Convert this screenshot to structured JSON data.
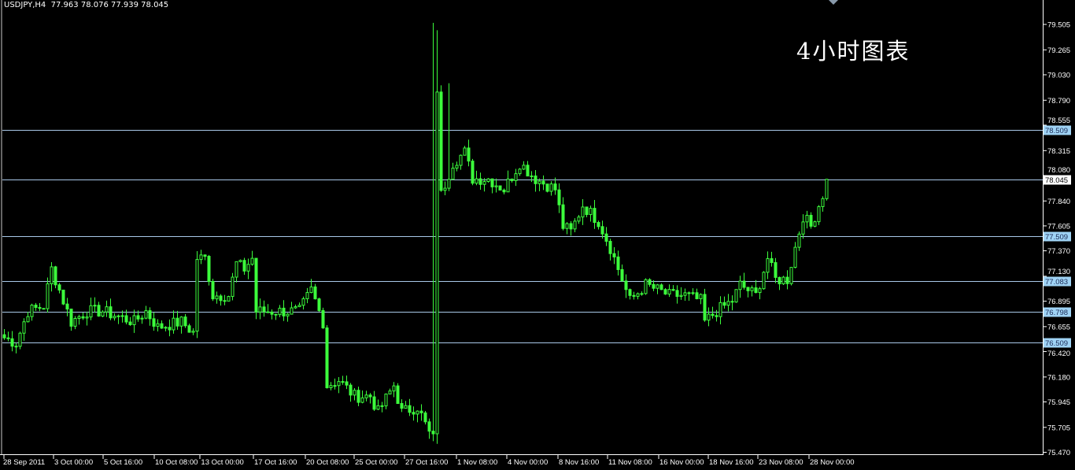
{
  "header": {
    "symbol": "USDJPY,H4",
    "ohlc": "77.963 78.076 77.939 78.045"
  },
  "overlay_text": "4小时图表",
  "colors": {
    "background": "#000000",
    "candle": "#3cff3c",
    "axis": "#ffffff",
    "level_line": "#a9c8e8",
    "level_label_bg": "#9fd3f5",
    "current_label_bg": "#ffffff"
  },
  "chart_data": {
    "type": "candlestick",
    "symbol": "USDJPY",
    "timeframe": "H4",
    "ylim": [
      75.47,
      79.505
    ],
    "grid": false,
    "y_ticks": [
      "79.505",
      "79.265",
      "79.030",
      "78.790",
      "78.555",
      "78.315",
      "78.080",
      "77.840",
      "77.605",
      "77.370",
      "77.130",
      "76.895",
      "76.655",
      "76.420",
      "76.180",
      "75.945",
      "75.705",
      "75.470"
    ],
    "x_ticks": [
      "28 Sep 2011",
      "3 Oct 00:00",
      "5 Oct 16:00",
      "10 Oct 08:00",
      "13 Oct 00:00",
      "17 Oct 16:00",
      "20 Oct 08:00",
      "25 Oct 00:00",
      "27 Oct 16:00",
      "1 Nov 08:00",
      "4 Nov 00:00",
      "8 Nov 16:00",
      "11 Nov 08:00",
      "16 Nov 00:00",
      "18 Nov 16:00",
      "23 Nov 08:00",
      "28 Nov 00:00"
    ],
    "close_path": [
      [
        0,
        76.55
      ],
      [
        3,
        76.5
      ],
      [
        6,
        76.8
      ],
      [
        10,
        76.85
      ],
      [
        12,
        77.2
      ],
      [
        14,
        77.0
      ],
      [
        17,
        76.7
      ],
      [
        21,
        76.8
      ],
      [
        25,
        76.8
      ],
      [
        29,
        76.75
      ],
      [
        33,
        76.7
      ],
      [
        36,
        76.8
      ],
      [
        39,
        76.65
      ],
      [
        45,
        76.7
      ],
      [
        48,
        76.6
      ],
      [
        49,
        77.3
      ],
      [
        51,
        77.3
      ],
      [
        53,
        76.95
      ],
      [
        57,
        76.95
      ],
      [
        59,
        77.25
      ],
      [
        61,
        77.2
      ],
      [
        63,
        77.3
      ],
      [
        64,
        76.8
      ],
      [
        69,
        76.8
      ],
      [
        75,
        76.8
      ],
      [
        78,
        77.0
      ],
      [
        81,
        76.7
      ],
      [
        82,
        76.1
      ],
      [
        85,
        76.15
      ],
      [
        89,
        76.0
      ],
      [
        93,
        76.0
      ],
      [
        95,
        75.85
      ],
      [
        99,
        76.1
      ],
      [
        101,
        75.85
      ],
      [
        105,
        75.9
      ],
      [
        108,
        75.65
      ],
      [
        109,
        75.6
      ],
      [
        110,
        78.9
      ],
      [
        111,
        77.9
      ],
      [
        112,
        78.0
      ],
      [
        114,
        78.2
      ],
      [
        117,
        78.3
      ],
      [
        119,
        78.05
      ],
      [
        123,
        78.05
      ],
      [
        127,
        77.95
      ],
      [
        131,
        78.2
      ],
      [
        135,
        78.05
      ],
      [
        140,
        77.95
      ],
      [
        142,
        77.6
      ],
      [
        144,
        77.55
      ],
      [
        147,
        77.8
      ],
      [
        151,
        77.65
      ],
      [
        154,
        77.4
      ],
      [
        157,
        77.1
      ],
      [
        159,
        76.9
      ],
      [
        163,
        77.05
      ],
      [
        169,
        76.95
      ],
      [
        173,
        76.95
      ],
      [
        177,
        76.9
      ],
      [
        178,
        76.7
      ],
      [
        181,
        76.8
      ],
      [
        185,
        76.9
      ],
      [
        187,
        77.05
      ],
      [
        191,
        76.95
      ],
      [
        194,
        77.3
      ],
      [
        196,
        77.1
      ],
      [
        199,
        77.1
      ],
      [
        201,
        77.4
      ],
      [
        203,
        77.7
      ],
      [
        205,
        77.6
      ],
      [
        208,
        77.9
      ],
      [
        209,
        78.045
      ]
    ],
    "spikes": [
      {
        "index": 109,
        "high": 79.52
      },
      {
        "index": 110,
        "high": 79.45
      },
      {
        "index": 113,
        "high": 78.95
      }
    ],
    "levels": [
      {
        "price": 78.509,
        "label": "78.509"
      },
      {
        "price": 78.045,
        "label": "78.045",
        "current": true
      },
      {
        "price": 77.509,
        "label": "77.509"
      },
      {
        "price": 77.083,
        "label": "77.083"
      },
      {
        "price": 76.798,
        "label": "76.798"
      },
      {
        "price": 76.509,
        "label": "76.509"
      }
    ]
  }
}
